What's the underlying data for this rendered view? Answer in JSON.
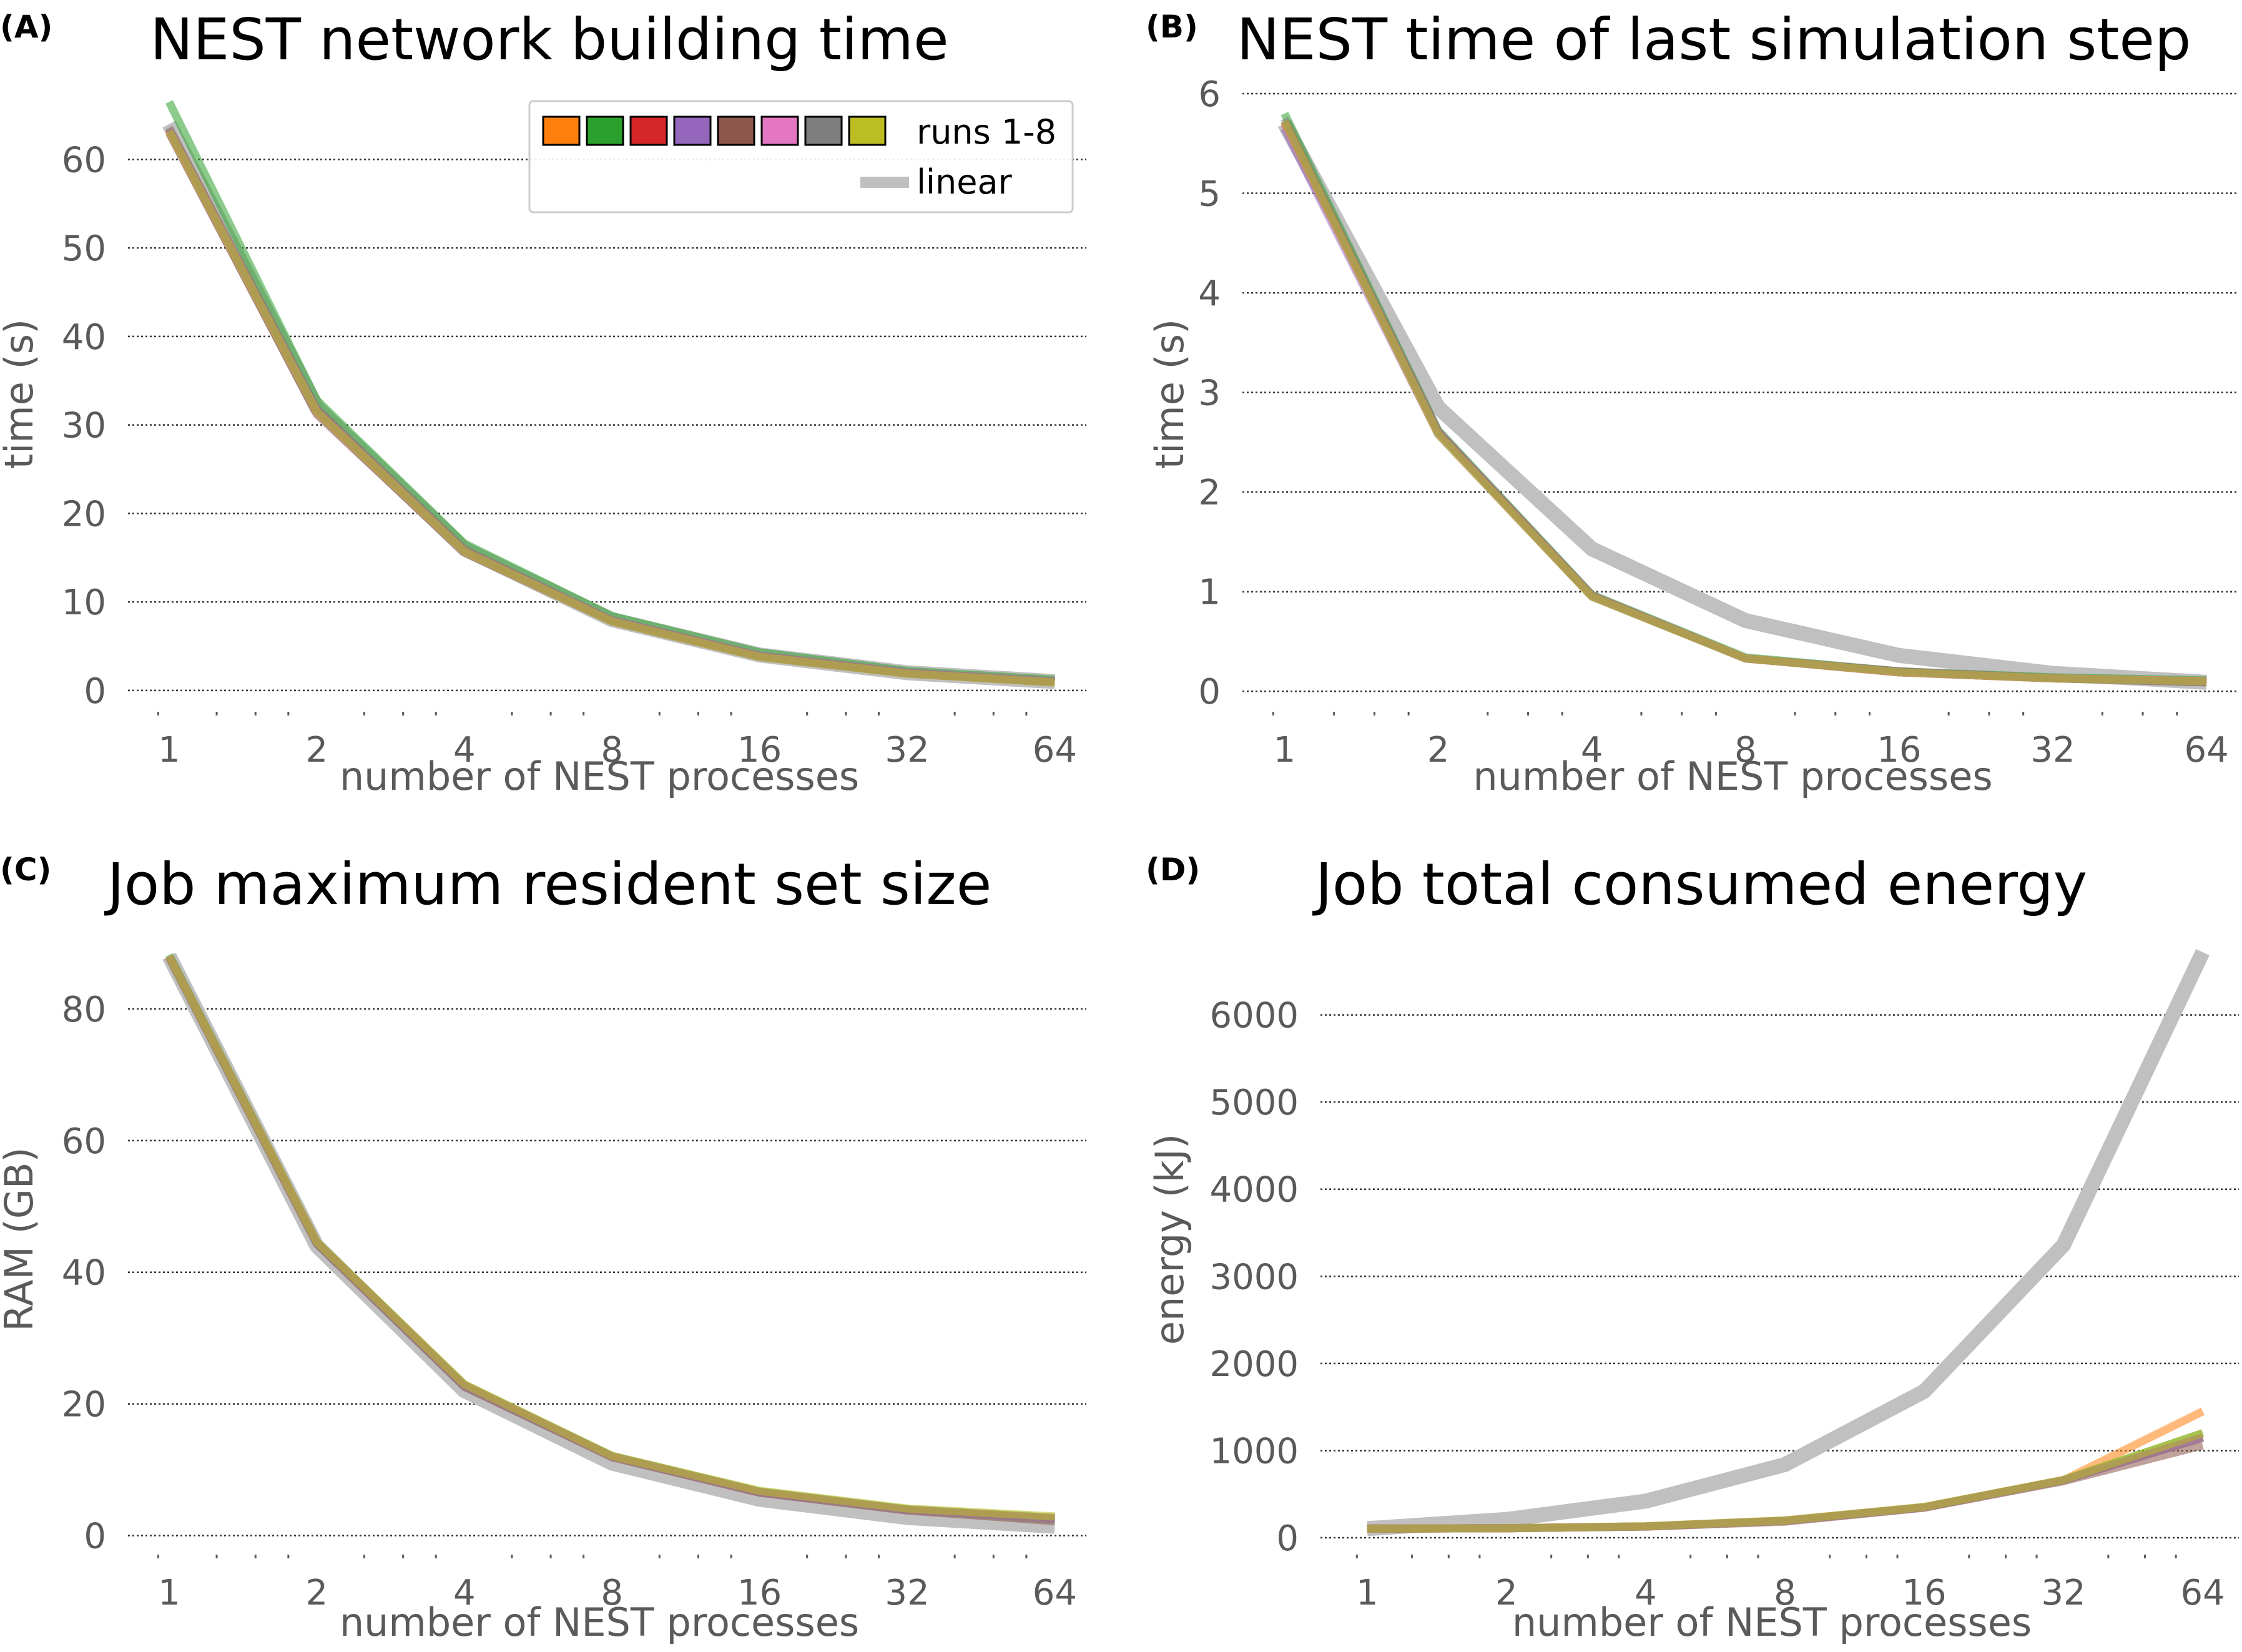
{
  "legend": {
    "runs_label": "runs 1-8",
    "linear_label": "linear",
    "swatch_colors": [
      "#ff7f0e",
      "#2ca02c",
      "#d62728",
      "#9467bd",
      "#8c564b",
      "#e377c2",
      "#7f7f7f",
      "#bcbd22"
    ]
  },
  "colors": {
    "linear": "#c0c0c0",
    "tick_text": "#5a5a5a",
    "grid": "#333333"
  },
  "chart_data": [
    {
      "panel": "(A)",
      "type": "line",
      "title": "NEST network building time",
      "xlabel": "number of NEST processes",
      "ylabel": "time (s)",
      "xscale": "log2",
      "xlim": [
        0.9,
        70
      ],
      "ylim": [
        -1,
        68
      ],
      "xticks": [
        1,
        2,
        4,
        8,
        16,
        32,
        64
      ],
      "yticks": [
        0,
        10,
        20,
        30,
        40,
        50,
        60
      ],
      "grid": "horizontal dotted",
      "legend_position": "top-right",
      "x": [
        1,
        2,
        4,
        8,
        16,
        32,
        64
      ],
      "linear": [
        64.0,
        32.0,
        16.0,
        8.0,
        4.0,
        2.0,
        1.0
      ],
      "series": [
        {
          "color": "#ff7f0e",
          "values": [
            63.5,
            31.8,
            15.9,
            7.9,
            3.9,
            2.0,
            1.0
          ]
        },
        {
          "color": "#2ca02c",
          "values": [
            66.5,
            32.8,
            16.6,
            8.4,
            4.3,
            2.2,
            1.2
          ]
        },
        {
          "color": "#d62728",
          "values": [
            63.3,
            31.6,
            15.8,
            7.9,
            3.9,
            2.0,
            1.0
          ]
        },
        {
          "color": "#9467bd",
          "values": [
            63.4,
            31.7,
            15.8,
            7.9,
            3.9,
            2.0,
            1.0
          ]
        },
        {
          "color": "#8c564b",
          "values": [
            63.0,
            31.2,
            15.6,
            7.8,
            3.8,
            1.9,
            0.9
          ]
        },
        {
          "color": "#e377c2",
          "values": [
            63.3,
            31.6,
            15.8,
            7.9,
            3.9,
            2.0,
            1.0
          ]
        },
        {
          "color": "#7f7f7f",
          "values": [
            63.6,
            31.8,
            15.9,
            7.9,
            3.9,
            2.0,
            1.0
          ]
        },
        {
          "color": "#bcbd22",
          "values": [
            63.2,
            31.5,
            15.7,
            7.8,
            3.8,
            1.9,
            0.9
          ]
        }
      ]
    },
    {
      "panel": "(B)",
      "type": "line",
      "title": "NEST time of last simulation step",
      "xlabel": "number of NEST processes",
      "ylabel": "time (s)",
      "xscale": "log2",
      "xlim": [
        0.9,
        70
      ],
      "ylim": [
        -0.08,
        6.05
      ],
      "xticks": [
        1,
        2,
        4,
        8,
        16,
        32,
        64
      ],
      "yticks": [
        0,
        1,
        2,
        3,
        4,
        5,
        6
      ],
      "grid": "horizontal dotted",
      "x": [
        1,
        2,
        4,
        8,
        16,
        32,
        64
      ],
      "linear": [
        5.7,
        2.85,
        1.43,
        0.71,
        0.36,
        0.18,
        0.09
      ],
      "series": [
        {
          "color": "#ff7f0e",
          "values": [
            5.7,
            2.6,
            0.96,
            0.33,
            0.19,
            0.13,
            0.1
          ]
        },
        {
          "color": "#2ca02c",
          "values": [
            5.8,
            2.62,
            0.97,
            0.34,
            0.2,
            0.14,
            0.11
          ]
        },
        {
          "color": "#d62728",
          "values": [
            5.72,
            2.6,
            0.96,
            0.33,
            0.19,
            0.13,
            0.1
          ]
        },
        {
          "color": "#9467bd",
          "values": [
            5.65,
            2.58,
            0.95,
            0.33,
            0.19,
            0.13,
            0.1
          ]
        },
        {
          "color": "#8c564b",
          "values": [
            5.72,
            2.6,
            0.96,
            0.33,
            0.2,
            0.13,
            0.09
          ]
        },
        {
          "color": "#e377c2",
          "values": [
            5.7,
            2.6,
            0.96,
            0.33,
            0.19,
            0.13,
            0.1
          ]
        },
        {
          "color": "#7f7f7f",
          "values": [
            5.75,
            2.61,
            0.96,
            0.33,
            0.2,
            0.13,
            0.09
          ]
        },
        {
          "color": "#bcbd22",
          "values": [
            5.72,
            2.58,
            0.95,
            0.33,
            0.19,
            0.13,
            0.1
          ]
        }
      ]
    },
    {
      "panel": "(C)",
      "type": "line",
      "title": "Job maximum resident set size",
      "xlabel": "number of NEST processes",
      "ylabel": "RAM (GB)",
      "xscale": "log2",
      "xlim": [
        0.9,
        70
      ],
      "ylim": [
        -1,
        91
      ],
      "xticks": [
        1,
        2,
        4,
        8,
        16,
        32,
        64
      ],
      "yticks": [
        0,
        20,
        40,
        60,
        80
      ],
      "grid": "horizontal dotted",
      "x": [
        1,
        2,
        4,
        8,
        16,
        32,
        64
      ],
      "linear": [
        88.0,
        44.0,
        22.0,
        11.0,
        5.5,
        2.75,
        1.4
      ],
      "series": [
        {
          "color": "#ff7f0e",
          "values": [
            88.0,
            44.5,
            22.8,
            12.0,
            6.6,
            3.9,
            2.6
          ]
        },
        {
          "color": "#2ca02c",
          "values": [
            88.2,
            44.6,
            22.9,
            12.1,
            6.7,
            4.0,
            2.7
          ]
        },
        {
          "color": "#d62728",
          "values": [
            88.0,
            44.5,
            22.8,
            12.0,
            6.6,
            3.9,
            2.6
          ]
        },
        {
          "color": "#9467bd",
          "values": [
            88.0,
            44.5,
            22.8,
            12.0,
            6.6,
            3.9,
            2.6
          ]
        },
        {
          "color": "#8c564b",
          "values": [
            87.8,
            44.3,
            22.6,
            11.9,
            6.5,
            3.8,
            2.2
          ]
        },
        {
          "color": "#e377c2",
          "values": [
            88.0,
            44.5,
            22.8,
            12.0,
            6.6,
            3.9,
            2.6
          ]
        },
        {
          "color": "#7f7f7f",
          "values": [
            87.9,
            44.4,
            22.7,
            12.0,
            6.6,
            3.9,
            2.5
          ]
        },
        {
          "color": "#bcbd22",
          "values": [
            88.0,
            44.6,
            23.0,
            12.1,
            6.8,
            4.1,
            2.9
          ]
        }
      ]
    },
    {
      "panel": "(D)",
      "type": "line",
      "title": "Job total consumed energy",
      "xlabel": "number of NEST processes",
      "ylabel": "energy (kJ)",
      "xscale": "log2",
      "xlim": [
        0.87,
        72
      ],
      "ylim": [
        -50,
        6900
      ],
      "xticks": [
        1,
        2,
        4,
        8,
        16,
        32,
        64
      ],
      "yticks": [
        0,
        1000,
        2000,
        3000,
        4000,
        5000,
        6000
      ],
      "grid": "horizontal dotted",
      "x": [
        1,
        2,
        4,
        8,
        16,
        32,
        64
      ],
      "linear": [
        105,
        210,
        420,
        840,
        1680,
        3360,
        6720
      ],
      "series": [
        {
          "color": "#ff7f0e",
          "values": [
            105,
            110,
            130,
            195,
            350,
            660,
            1450
          ]
        },
        {
          "color": "#2ca02c",
          "values": [
            105,
            110,
            130,
            195,
            350,
            660,
            1200
          ]
        },
        {
          "color": "#d62728",
          "values": [
            105,
            110,
            130,
            195,
            350,
            660,
            1150
          ]
        },
        {
          "color": "#9467bd",
          "values": [
            105,
            110,
            130,
            195,
            350,
            660,
            1150
          ]
        },
        {
          "color": "#8c564b",
          "values": [
            105,
            110,
            128,
            185,
            345,
            650,
            1060
          ]
        },
        {
          "color": "#e377c2",
          "values": [
            105,
            110,
            130,
            195,
            350,
            660,
            1150
          ]
        },
        {
          "color": "#7f7f7f",
          "values": [
            105,
            110,
            130,
            195,
            350,
            660,
            1150
          ]
        },
        {
          "color": "#bcbd22",
          "values": [
            105,
            110,
            132,
            200,
            355,
            665,
            1200
          ]
        }
      ]
    }
  ]
}
